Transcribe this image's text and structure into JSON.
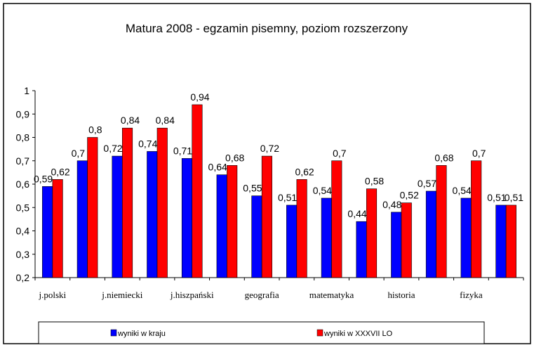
{
  "chart_data": {
    "type": "bar",
    "title": "Matura 2008 - egzamin pisemny, poziom rozszerzony",
    "xlabel": "",
    "ylabel": "",
    "ylim": [
      0.2,
      1
    ],
    "yticks": [
      "0,2",
      "0,3",
      "0,4",
      "0,5",
      "0,6",
      "0,7",
      "0,8",
      "0,9",
      "1"
    ],
    "yticks_values": [
      0.2,
      0.3,
      0.4,
      0.5,
      0.6,
      0.7,
      0.8,
      0.9,
      1
    ],
    "categories": [
      "j.polski",
      "",
      "j.niemiecki",
      "",
      "j.hiszpański",
      "",
      "geografia",
      "",
      "matematyka",
      "",
      "historia",
      "",
      "fizyka",
      ""
    ],
    "legend_position": "bottom",
    "grid": false,
    "series": [
      {
        "name": "wyniki w kraju",
        "color": "#0000ff",
        "values": [
          0.59,
          0.7,
          0.72,
          0.74,
          0.71,
          0.64,
          0.55,
          0.51,
          0.54,
          0.44,
          0.48,
          0.57,
          0.54,
          0.51
        ],
        "labels": [
          "0,59",
          "0,7",
          "0,72",
          "0,74",
          "0,71",
          "0,64",
          "0,55",
          "0,51",
          "0,54",
          "0,44",
          "0,48",
          "0,57",
          "0,54",
          "0,51"
        ]
      },
      {
        "name": "wyniki w XXXVII LO",
        "color": "#ff0000",
        "values": [
          0.62,
          0.8,
          0.84,
          0.84,
          0.94,
          0.68,
          0.72,
          0.62,
          0.7,
          0.58,
          0.52,
          0.68,
          0.7,
          0.51
        ],
        "labels": [
          "0,62",
          "0,8",
          "0,84",
          "0,84",
          "0,94",
          "0,68",
          "0,72",
          "0,62",
          "0,7",
          "0,58",
          "0,52",
          "0,68",
          "0,7",
          "0,51"
        ]
      }
    ]
  }
}
